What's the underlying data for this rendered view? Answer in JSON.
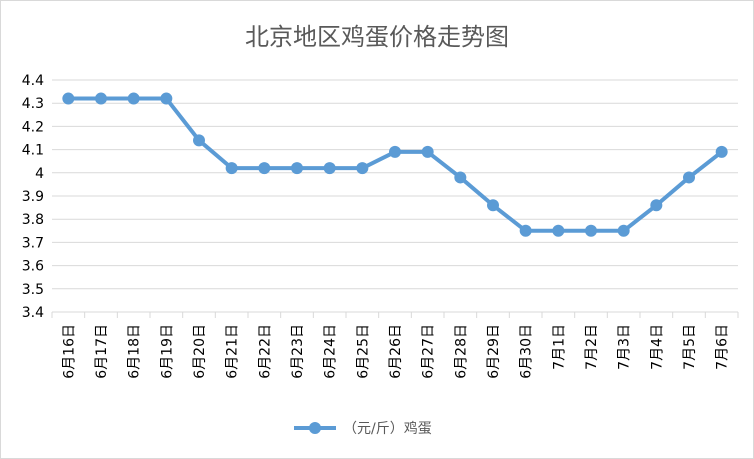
{
  "chart_data": {
    "type": "line",
    "title": "北京地区鸡蛋价格走势图",
    "categories": [
      "6月16日",
      "6月17日",
      "6月18日",
      "6月19日",
      "6月20日",
      "6月21日",
      "6月22日",
      "6月23日",
      "6月24日",
      "6月25日",
      "6月26日",
      "6月27日",
      "6月28日",
      "6月29日",
      "6月30日",
      "7月1日",
      "7月2日",
      "7月3日",
      "7月4日",
      "7月5日",
      "7月6日"
    ],
    "series": [
      {
        "name": "（元/斤）鸡蛋",
        "color": "#5b9bd5",
        "values": [
          4.32,
          4.32,
          4.32,
          4.32,
          4.14,
          4.02,
          4.02,
          4.02,
          4.02,
          4.02,
          4.09,
          4.09,
          3.98,
          3.86,
          3.75,
          3.75,
          3.75,
          3.75,
          3.86,
          3.98,
          4.09
        ]
      }
    ],
    "ylim": [
      3.4,
      4.4
    ],
    "yticks": [
      "3.4",
      "3.5",
      "3.6",
      "3.7",
      "3.8",
      "3.9",
      "4",
      "4.1",
      "4.2",
      "4.3",
      "4.4"
    ],
    "grid": true,
    "legend": "bottom"
  }
}
